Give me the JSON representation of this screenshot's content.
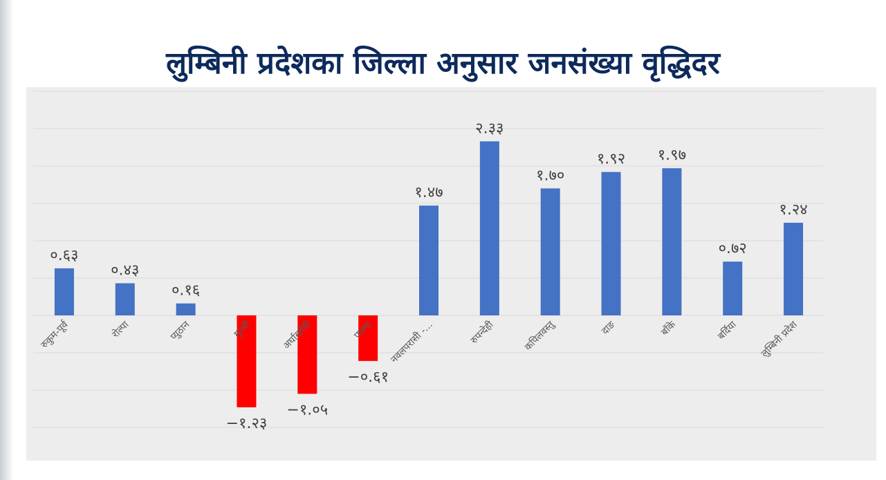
{
  "chart_data": {
    "type": "bar",
    "title": "लुम्बिनी प्रदेशका जिल्ला अनुसार जनसंख्या वृद्धिदर",
    "categories": [
      "रुकुम-पूर्व",
      "रोल्पा",
      "प्युठान",
      "गुल्मी",
      "अर्घाखाँची",
      "पाल्पा",
      "नवलपरासी -...",
      "रुपन्देही",
      "कपिलवस्तु",
      "दाङ",
      "बाँके",
      "बर्दिया",
      "लुम्बिनी प्रदेश"
    ],
    "values": [
      0.63,
      0.43,
      0.16,
      -1.23,
      -1.05,
      -0.61,
      1.47,
      2.33,
      1.7,
      1.92,
      1.97,
      0.72,
      1.24
    ],
    "value_labels": [
      "०.६३",
      "०.४३",
      "०.१६",
      "−१.२३",
      "−१.०५",
      "−०.६१",
      "१.४७",
      "२.३३",
      "१.७०",
      "१.९२",
      "१.९७",
      "०.७२",
      "१.२४"
    ],
    "ylim": [
      -1.5,
      3.0
    ],
    "grid": true,
    "legend": "none",
    "colors": {
      "positive": "#4472c4",
      "negative": "#ff0000",
      "grid": "#d9d9d9",
      "background": "#ededed",
      "title": "#0d2a5c"
    }
  }
}
